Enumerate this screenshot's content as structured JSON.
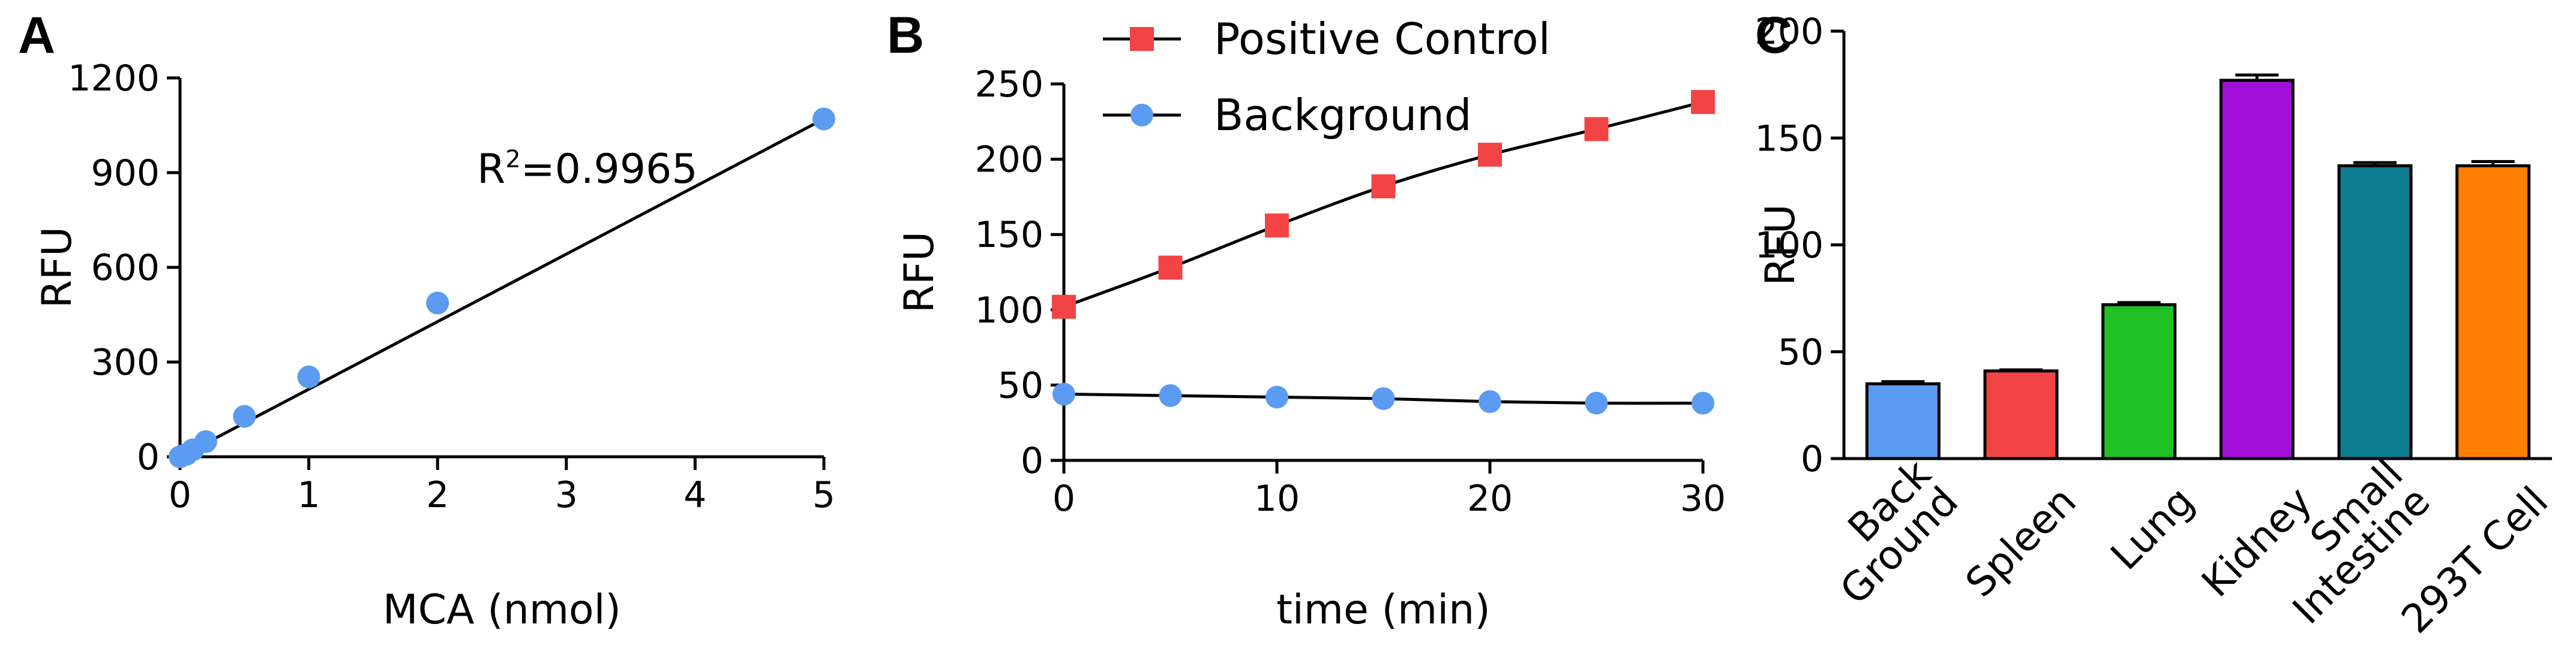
{
  "colors": {
    "blue_point": "#5b9cf2",
    "red_point": "#f24444",
    "line": "#000000"
  },
  "chart_data": [
    {
      "panel": "A",
      "type": "scatter",
      "xlabel": "MCA (nmol)",
      "ylabel": "RFU",
      "xlim": [
        0,
        5
      ],
      "ylim": [
        0,
        1200
      ],
      "x_ticks": [
        0,
        1,
        2,
        3,
        4,
        5
      ],
      "y_ticks": [
        0,
        300,
        600,
        900,
        1200
      ],
      "annotation": {
        "prefix": "R",
        "sup": "2",
        "suffix": "=0.9965"
      },
      "points": [
        {
          "x": 0.0,
          "y": 0
        },
        {
          "x": 0.05,
          "y": 8
        },
        {
          "x": 0.1,
          "y": 22
        },
        {
          "x": 0.2,
          "y": 48
        },
        {
          "x": 0.5,
          "y": 128
        },
        {
          "x": 1.0,
          "y": 253
        },
        {
          "x": 2.0,
          "y": 487
        },
        {
          "x": 5.0,
          "y": 1070
        }
      ],
      "fit": {
        "x": [
          0,
          5
        ],
        "y": [
          0,
          1070
        ]
      },
      "grid": false
    },
    {
      "panel": "B",
      "type": "line",
      "xlabel": "time (min)",
      "ylabel": "RFU",
      "xlim": [
        0,
        30
      ],
      "ylim": [
        0,
        250
      ],
      "x_ticks": [
        0,
        10,
        20,
        30
      ],
      "y_ticks": [
        0,
        50,
        100,
        150,
        200,
        250
      ],
      "x": [
        0,
        5,
        10,
        15,
        20,
        25,
        30
      ],
      "legend_position": "top",
      "series": [
        {
          "name": "Positive Control",
          "marker": "square",
          "color": "#f24444",
          "values": [
            102,
            128,
            156,
            182,
            203,
            220,
            238
          ]
        },
        {
          "name": "Background",
          "marker": "circle",
          "color": "#5b9cf2",
          "values": [
            44,
            43,
            42,
            41,
            39,
            38,
            38
          ]
        }
      ],
      "grid": false
    },
    {
      "panel": "C",
      "type": "bar",
      "ylabel": "RFU",
      "ylim": [
        0,
        200
      ],
      "y_ticks": [
        0,
        50,
        100,
        150,
        200
      ],
      "categories": [
        {
          "lines": [
            "Back",
            "Ground"
          ]
        },
        {
          "lines": [
            "Spleen"
          ]
        },
        {
          "lines": [
            "Lung"
          ]
        },
        {
          "lines": [
            "Kidney"
          ]
        },
        {
          "lines": [
            "Small",
            "Intestine"
          ]
        },
        {
          "lines": [
            "293T Cell"
          ]
        }
      ],
      "values": [
        35,
        41,
        72,
        177,
        137,
        137
      ],
      "errors": [
        1.0,
        0.5,
        1.0,
        2.5,
        1.5,
        2.0
      ],
      "colors": [
        "#5b9cf2",
        "#f24444",
        "#1fc125",
        "#a10fd9",
        "#0e7c91",
        "#ff7f00"
      ],
      "grid": false
    }
  ]
}
